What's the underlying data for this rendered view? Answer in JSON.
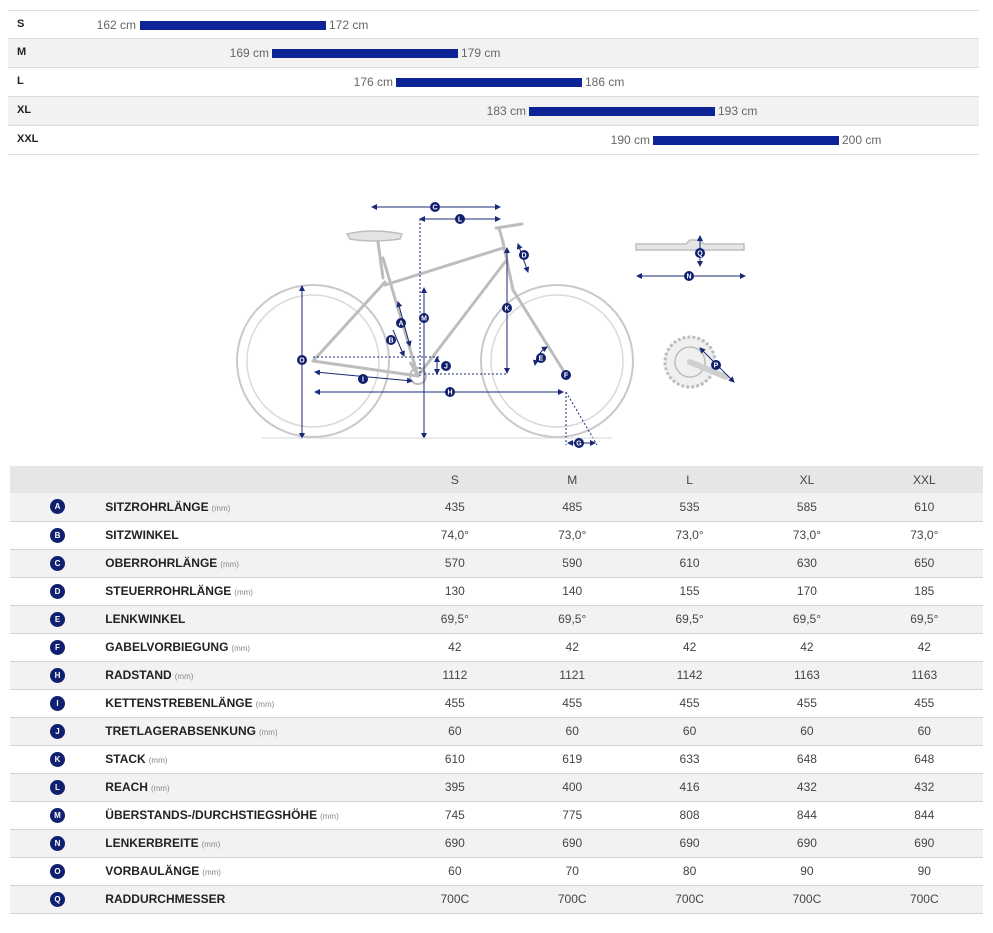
{
  "colors": {
    "accent": "#0d2496",
    "badge": "#10206e"
  },
  "size_chart": {
    "rows": [
      {
        "size": "S",
        "min": "162 cm",
        "max": "172 cm",
        "min_cm": 162,
        "max_cm": 172
      },
      {
        "size": "M",
        "min": "169 cm",
        "max": "179 cm",
        "min_cm": 169,
        "max_cm": 179
      },
      {
        "size": "L",
        "min": "176 cm",
        "max": "186 cm",
        "min_cm": 176,
        "max_cm": 186
      },
      {
        "size": "XL",
        "min": "183 cm",
        "max": "193 cm",
        "min_cm": 183,
        "max_cm": 193
      },
      {
        "size": "XXL",
        "min": "190 cm",
        "max": "200 cm",
        "min_cm": 190,
        "max_cm": 200
      }
    ]
  },
  "diagram": {
    "labels": {
      "A": "A",
      "B": "B",
      "C": "C",
      "D": "D",
      "E": "E",
      "F": "F",
      "G": "G",
      "H": "H",
      "I": "I",
      "J": "J",
      "K": "K",
      "L": "L",
      "M": "M",
      "N": "N",
      "O": "O",
      "P": "P",
      "Q": "Q"
    }
  },
  "table": {
    "headers": [
      "S",
      "M",
      "L",
      "XL",
      "XXL"
    ],
    "rows": [
      {
        "letter": "A",
        "name": "SITZROHRLÄNGE",
        "unit": "(mm)",
        "values": [
          "435",
          "485",
          "535",
          "585",
          "610"
        ]
      },
      {
        "letter": "B",
        "name": "SITZWINKEL",
        "unit": "",
        "values": [
          "74,0°",
          "73,0°",
          "73,0°",
          "73,0°",
          "73,0°"
        ]
      },
      {
        "letter": "C",
        "name": "OBERROHRLÄNGE",
        "unit": "(mm)",
        "values": [
          "570",
          "590",
          "610",
          "630",
          "650"
        ]
      },
      {
        "letter": "D",
        "name": "STEUERROHRLÄNGE",
        "unit": "(mm)",
        "values": [
          "130",
          "140",
          "155",
          "170",
          "185"
        ]
      },
      {
        "letter": "E",
        "name": "LENKWINKEL",
        "unit": "",
        "values": [
          "69,5°",
          "69,5°",
          "69,5°",
          "69,5°",
          "69,5°"
        ]
      },
      {
        "letter": "F",
        "name": "GABELVORBIEGUNG",
        "unit": "(mm)",
        "values": [
          "42",
          "42",
          "42",
          "42",
          "42"
        ]
      },
      {
        "letter": "H",
        "name": "RADSTAND",
        "unit": "(mm)",
        "values": [
          "1112",
          "1121",
          "1142",
          "1163",
          "1163"
        ]
      },
      {
        "letter": "I",
        "name": "KETTENSTREBENLÄNGE",
        "unit": "(mm)",
        "values": [
          "455",
          "455",
          "455",
          "455",
          "455"
        ]
      },
      {
        "letter": "J",
        "name": "TRETLAGERABSENKUNG",
        "unit": "(mm)",
        "values": [
          "60",
          "60",
          "60",
          "60",
          "60"
        ]
      },
      {
        "letter": "K",
        "name": "STACK",
        "unit": "(mm)",
        "values": [
          "610",
          "619",
          "633",
          "648",
          "648"
        ]
      },
      {
        "letter": "L",
        "name": "REACH",
        "unit": "(mm)",
        "values": [
          "395",
          "400",
          "416",
          "432",
          "432"
        ]
      },
      {
        "letter": "M",
        "name": "ÜBERSTANDS-/DURCHSTIEGSHÖHE",
        "unit": "(mm)",
        "values": [
          "745",
          "775",
          "808",
          "844",
          "844"
        ]
      },
      {
        "letter": "N",
        "name": "LENKERBREITE",
        "unit": "(mm)",
        "values": [
          "690",
          "690",
          "690",
          "690",
          "690"
        ]
      },
      {
        "letter": "O",
        "name": "VORBAULÄNGE",
        "unit": "(mm)",
        "values": [
          "60",
          "70",
          "80",
          "90",
          "90"
        ]
      },
      {
        "letter": "Q",
        "name": "RADDURCHMESSER",
        "unit": "",
        "values": [
          "700C",
          "700C",
          "700C",
          "700C",
          "700C"
        ]
      }
    ]
  }
}
